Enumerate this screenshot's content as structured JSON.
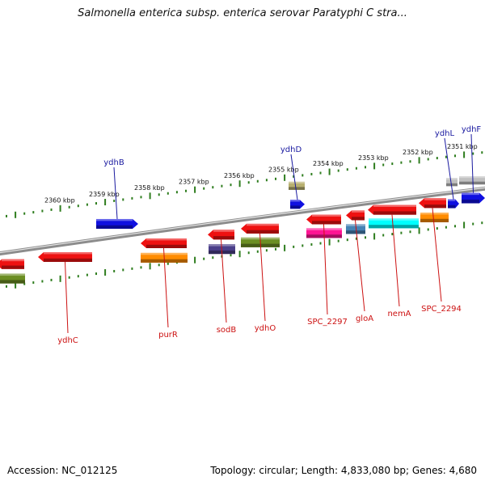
{
  "title": "Salmonella enterica subsp. enterica serovar Paratyphi C stra...",
  "footer": {
    "accession": "Accession: NC_012125",
    "summary": "Topology: circular; Length: 4,833,080 bp; Genes: 4,680"
  },
  "colors": {
    "backbone": "#8c8c8c",
    "tick": "#2e7d1e",
    "forward_label": "#1a1aa0",
    "reverse_label": "#cc1111"
  },
  "ticks": [
    {
      "label": "2360 kbp"
    },
    {
      "label": "2359 kbp"
    },
    {
      "label": "2358 kbp"
    },
    {
      "label": "2357 kbp"
    },
    {
      "label": "2356 kbp"
    },
    {
      "label": "2355 kbp"
    },
    {
      "label": "2354 kbp"
    },
    {
      "label": "2353 kbp"
    },
    {
      "label": "2352 kbp"
    },
    {
      "label": "2351 kbp"
    }
  ],
  "forward_features": [
    {
      "name": "ydhB",
      "color": "#1010e0"
    },
    {
      "name": "",
      "color": "#b8b070"
    },
    {
      "name": "ydhD",
      "color": "#1010e0"
    },
    {
      "name": "",
      "color": "#c0c0c0"
    },
    {
      "name": "ydhL",
      "color": "#1010e0"
    },
    {
      "name": "ydhF",
      "color": "#1010e0"
    },
    {
      "name": "",
      "color": "#c0c0c0"
    }
  ],
  "reverse_features": [
    {
      "name": "",
      "color": "#ee1111"
    },
    {
      "name": "",
      "color": "#6b8e23"
    },
    {
      "name": "ydhC",
      "color": "#ee1111"
    },
    {
      "name": "purR",
      "color": "#ee1111"
    },
    {
      "name": "",
      "color": "#ff8c00"
    },
    {
      "name": "sodB",
      "color": "#ee1111"
    },
    {
      "name": "",
      "color": "#4b3f8a"
    },
    {
      "name": "ydhO",
      "color": "#ee1111"
    },
    {
      "name": "",
      "color": "#6b8e23"
    },
    {
      "name": "SPC_2297",
      "color": "#ee1111"
    },
    {
      "name": "",
      "color": "#ff1493"
    },
    {
      "name": "gloA",
      "color": "#ee1111"
    },
    {
      "name": "",
      "color": "#4682b4"
    },
    {
      "name": "nemA",
      "color": "#ee1111"
    },
    {
      "name": "",
      "color": "#00ffff"
    },
    {
      "name": "SPC_2294",
      "color": "#ee1111"
    },
    {
      "name": "",
      "color": "#ff8c00"
    }
  ]
}
